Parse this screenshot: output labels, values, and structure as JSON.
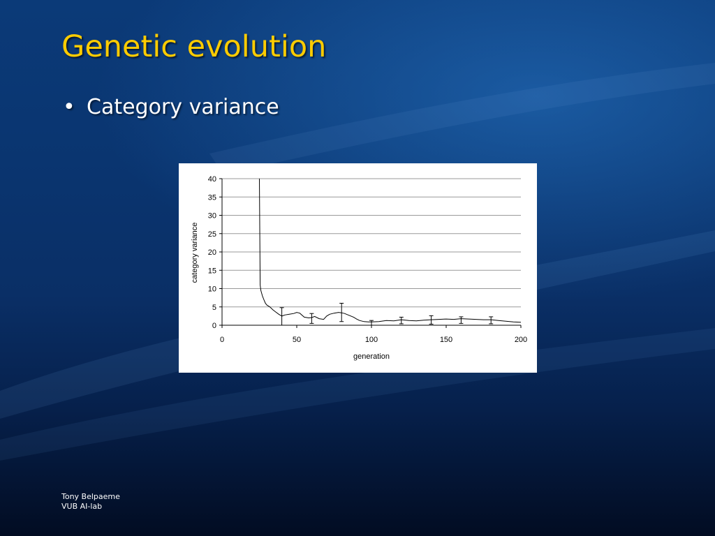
{
  "slide": {
    "title": "Genetic evolution",
    "bullets": [
      "Category variance"
    ]
  },
  "footer": {
    "author": "Tony Belpaeme",
    "affiliation": "VUB AI-lab"
  },
  "colors": {
    "title": "#ffcc00",
    "text": "#ffffff",
    "chart_bg": "#ffffff",
    "line": "#000000"
  },
  "chart_data": {
    "type": "line",
    "title": "",
    "xlabel": "generation",
    "ylabel": "category variance",
    "xlim": [
      0,
      200
    ],
    "ylim": [
      0,
      40
    ],
    "x_ticks": [
      "0",
      "50",
      "100",
      "150",
      "200"
    ],
    "y_ticks": [
      "0",
      "5",
      "10",
      "15",
      "20",
      "25",
      "30",
      "35",
      "40"
    ],
    "grid": "horizontal",
    "legend": "none",
    "series": [
      {
        "x": [
          25,
          25.5,
          26,
          27,
          28,
          29,
          30,
          32,
          34,
          36,
          38,
          40,
          42,
          45,
          48,
          50,
          52,
          55,
          58,
          60,
          62,
          65,
          68,
          70,
          72,
          75,
          78,
          80,
          82,
          85,
          88,
          90,
          92,
          95,
          98,
          100,
          105,
          110,
          115,
          120,
          125,
          130,
          135,
          140,
          145,
          150,
          155,
          160,
          165,
          170,
          175,
          180,
          185,
          190,
          195,
          200
        ],
        "y": [
          40,
          11,
          9.5,
          8,
          7,
          6,
          5.5,
          5,
          4.2,
          3.6,
          3,
          2.5,
          2.8,
          3.0,
          3.2,
          3.5,
          3.3,
          2.2,
          2.0,
          2.1,
          2.4,
          1.8,
          1.6,
          2.5,
          3.0,
          3.3,
          3.5,
          3.4,
          3.2,
          2.7,
          2.2,
          1.7,
          1.3,
          1.0,
          0.9,
          0.9,
          1.0,
          1.3,
          1.2,
          1.5,
          1.3,
          1.2,
          1.4,
          1.5,
          1.6,
          1.7,
          1.6,
          1.8,
          1.7,
          1.6,
          1.5,
          1.5,
          1.3,
          1.1,
          0.9,
          0.8
        ]
      }
    ],
    "error_bars": [
      {
        "x": 40,
        "low": 0,
        "high": 4.8
      },
      {
        "x": 60,
        "low": 0.5,
        "high": 3.2
      },
      {
        "x": 80,
        "low": 1.0,
        "high": 6.0
      },
      {
        "x": 100,
        "low": 0,
        "high": 1.3
      },
      {
        "x": 120,
        "low": 0.4,
        "high": 2.2
      },
      {
        "x": 140,
        "low": 0.3,
        "high": 2.6
      },
      {
        "x": 160,
        "low": 0.5,
        "high": 2.3
      },
      {
        "x": 180,
        "low": 0.4,
        "high": 2.3
      }
    ]
  }
}
